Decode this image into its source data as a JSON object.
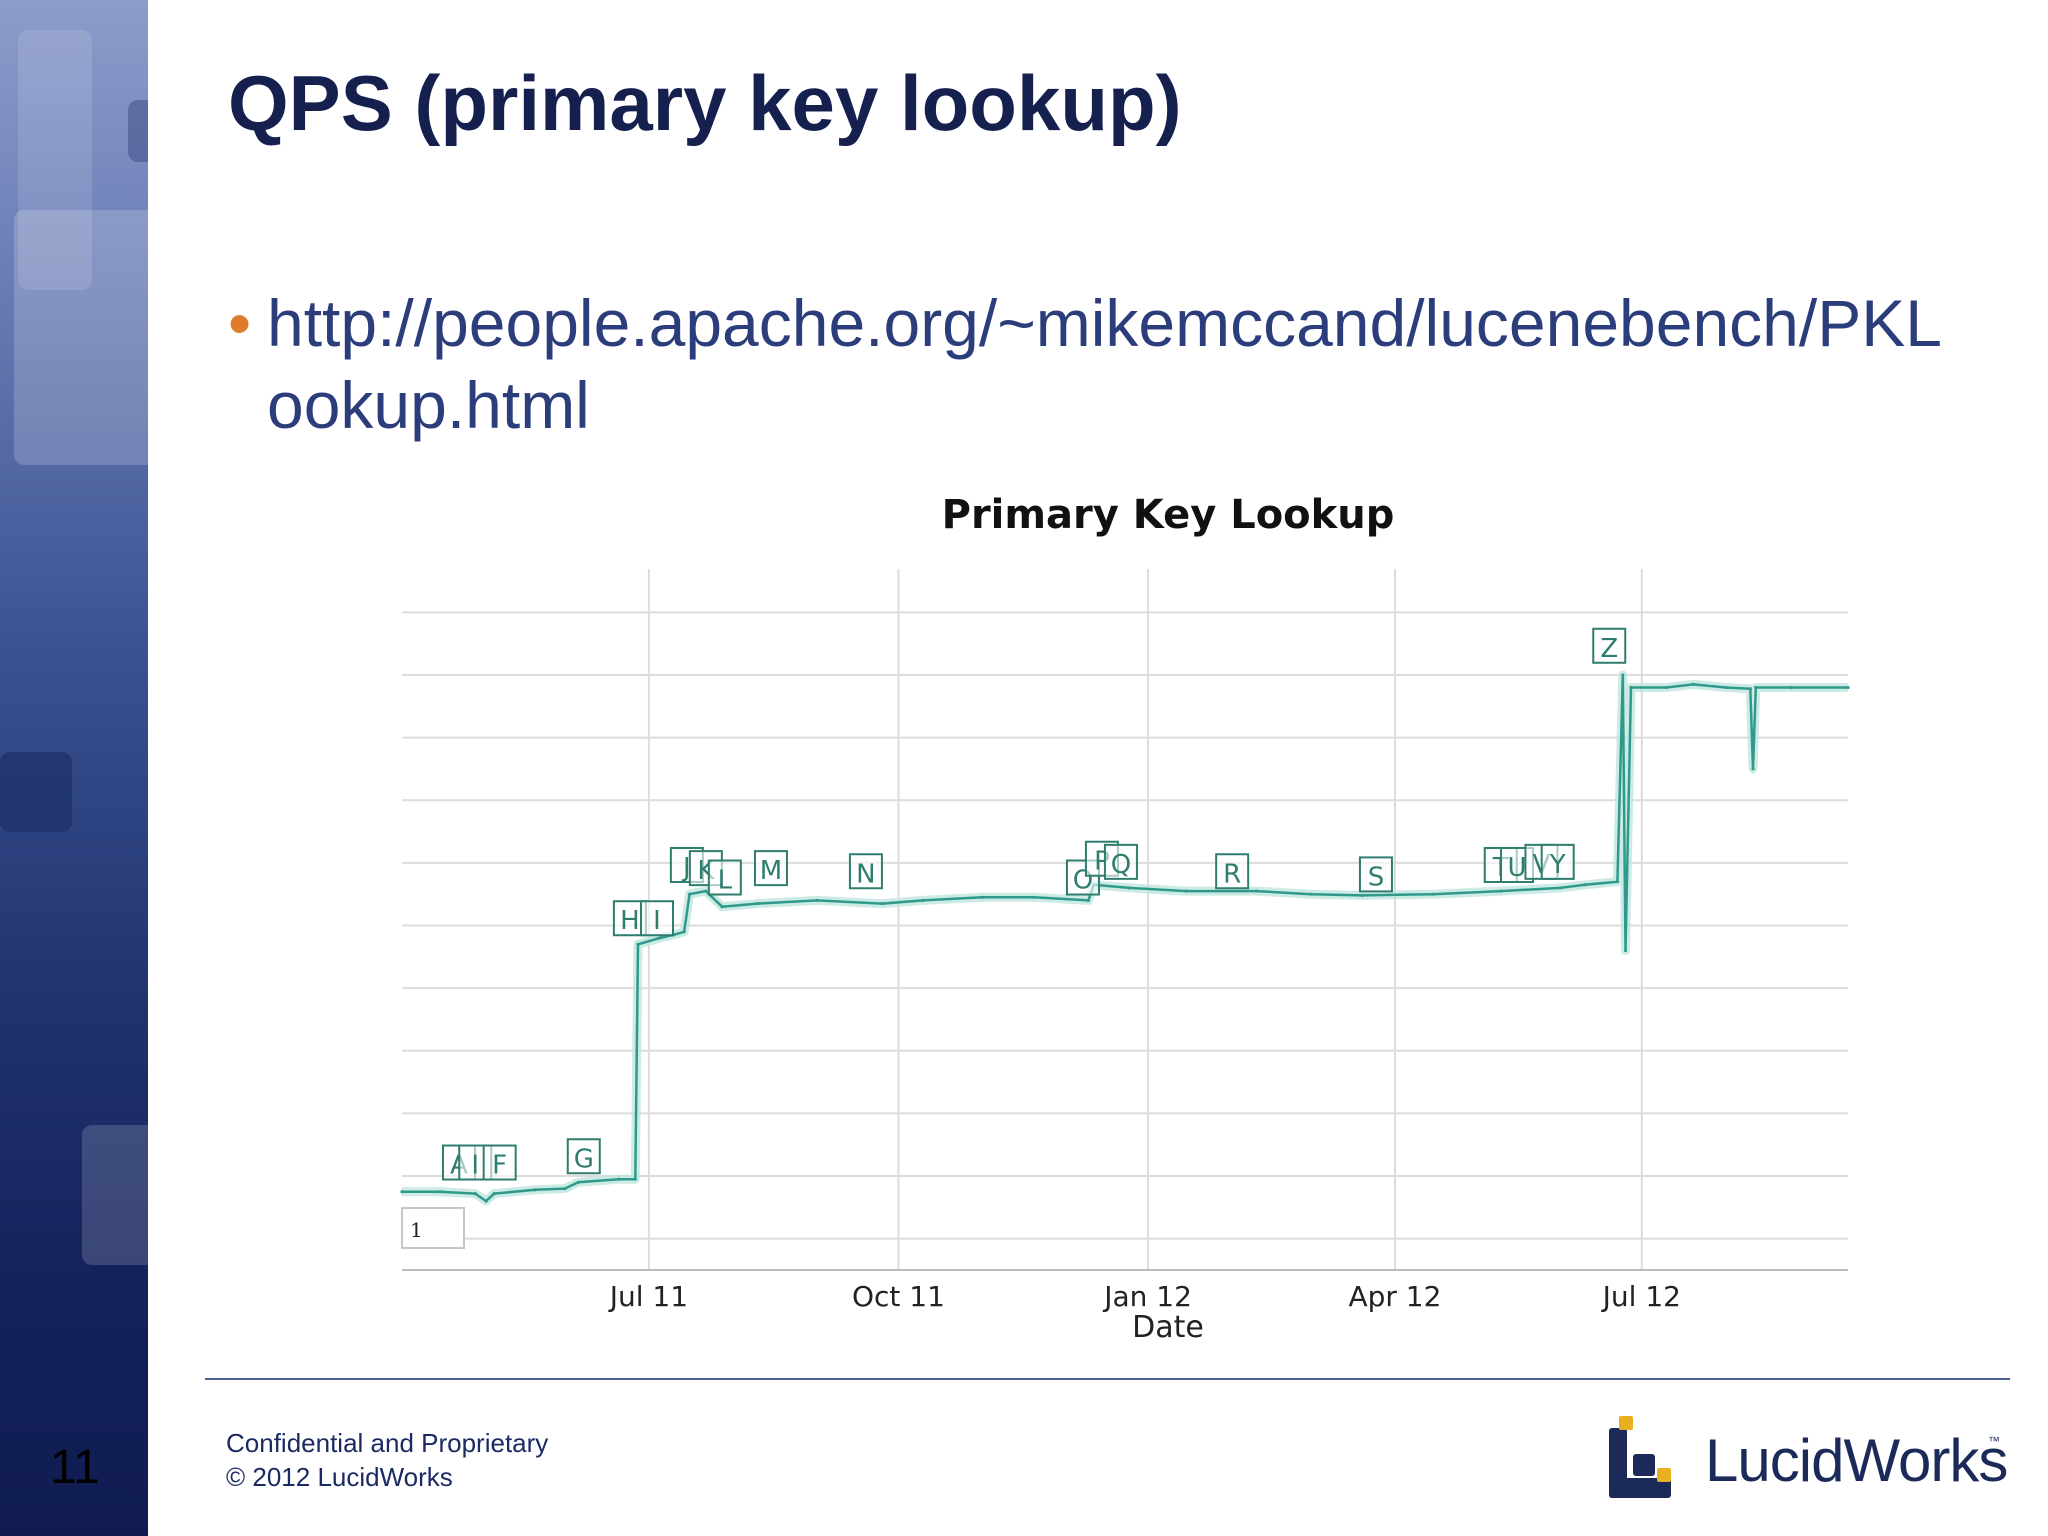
{
  "slide": {
    "number": "11",
    "title": "QPS (primary key lookup)",
    "bullet_url": "http://people.apache.org/~mikemccand/lucenebench/PKLookup.html"
  },
  "footer": {
    "line1": "Confidential and Proprietary",
    "line2": "© 2012 LucidWorks",
    "logo_text": "LucidWorks",
    "logo_tm": "™"
  },
  "colors": {
    "sidebar_dark": "#101c51",
    "title": "#16204f",
    "bullet_text": "#2b3d7a",
    "bullet_dot": "#e07b29",
    "series": "#2f9a8c",
    "band": "#bfe6df",
    "annotation": "#2f7d6e",
    "logo_accent": "#e8b020"
  },
  "icons": {
    "bullet": "orange-dot-icon",
    "logo": "lucidworks-logo-icon"
  },
  "chart_data": {
    "type": "line",
    "title": "Primary Key Lookup",
    "xlabel": "Date",
    "ylabel": "",
    "xlim": [
      "2011-04-01",
      "2012-09-15"
    ],
    "ylim": [
      0,
      11
    ],
    "grid": true,
    "x_ticks": [
      {
        "date": "2011-07-01",
        "label": "Jul 11"
      },
      {
        "date": "2011-10-01",
        "label": "Oct 11"
      },
      {
        "date": "2012-01-01",
        "label": "Jan 12"
      },
      {
        "date": "2012-04-01",
        "label": "Apr 12"
      },
      {
        "date": "2012-07-01",
        "label": "Jul 12"
      }
    ],
    "y_tick_label_visible": "1",
    "series": [
      {
        "name": "",
        "points": [
          [
            "2011-04-01",
            1.25
          ],
          [
            "2011-04-15",
            1.25
          ],
          [
            "2011-04-28",
            1.22
          ],
          [
            "2011-05-02",
            1.1
          ],
          [
            "2011-05-05",
            1.22
          ],
          [
            "2011-05-20",
            1.28
          ],
          [
            "2011-05-31",
            1.3
          ],
          [
            "2011-06-05",
            1.4
          ],
          [
            "2011-06-20",
            1.45
          ],
          [
            "2011-06-26",
            1.45
          ],
          [
            "2011-06-27",
            5.2
          ],
          [
            "2011-07-05",
            5.3
          ],
          [
            "2011-07-10",
            5.35
          ],
          [
            "2011-07-14",
            5.4
          ],
          [
            "2011-07-16",
            6.0
          ],
          [
            "2011-07-22",
            6.05
          ],
          [
            "2011-07-28",
            5.8
          ],
          [
            "2011-08-10",
            5.85
          ],
          [
            "2011-09-01",
            5.9
          ],
          [
            "2011-09-25",
            5.85
          ],
          [
            "2011-10-10",
            5.9
          ],
          [
            "2011-11-01",
            5.95
          ],
          [
            "2011-11-20",
            5.95
          ],
          [
            "2011-12-10",
            5.9
          ],
          [
            "2011-12-12",
            6.15
          ],
          [
            "2011-12-25",
            6.1
          ],
          [
            "2012-01-15",
            6.05
          ],
          [
            "2012-02-10",
            6.05
          ],
          [
            "2012-03-01",
            6.0
          ],
          [
            "2012-03-20",
            5.98
          ],
          [
            "2012-04-15",
            6.0
          ],
          [
            "2012-05-10",
            6.05
          ],
          [
            "2012-06-01",
            6.1
          ],
          [
            "2012-06-10",
            6.15
          ],
          [
            "2012-06-22",
            6.2
          ],
          [
            "2012-06-24",
            9.5
          ],
          [
            "2012-06-25",
            5.1
          ],
          [
            "2012-06-27",
            9.3
          ],
          [
            "2012-07-10",
            9.3
          ],
          [
            "2012-07-20",
            9.35
          ],
          [
            "2012-08-01",
            9.3
          ],
          [
            "2012-08-10",
            9.28
          ],
          [
            "2012-08-11",
            8.0
          ],
          [
            "2012-08-12",
            9.3
          ],
          [
            "2012-08-25",
            9.3
          ],
          [
            "2012-09-15",
            9.3
          ]
        ]
      }
    ],
    "annotations": [
      {
        "label": "A",
        "date": "2011-04-22",
        "y": 1.7
      },
      {
        "label": "I",
        "date": "2011-04-28",
        "y": 1.7
      },
      {
        "label": "F",
        "date": "2011-05-07",
        "y": 1.7
      },
      {
        "label": "G",
        "date": "2011-06-07",
        "y": 1.8
      },
      {
        "label": "H",
        "date": "2011-06-24",
        "y": 5.6
      },
      {
        "label": "I",
        "date": "2011-07-04",
        "y": 5.6
      },
      {
        "label": "J",
        "date": "2011-07-15",
        "y": 6.45
      },
      {
        "label": "K",
        "date": "2011-07-22",
        "y": 6.4
      },
      {
        "label": "L",
        "date": "2011-07-29",
        "y": 6.25
      },
      {
        "label": "M",
        "date": "2011-08-15",
        "y": 6.4
      },
      {
        "label": "N",
        "date": "2011-09-19",
        "y": 6.35
      },
      {
        "label": "O",
        "date": "2011-12-08",
        "y": 6.25
      },
      {
        "label": "P",
        "date": "2011-12-15",
        "y": 6.55
      },
      {
        "label": "Q",
        "date": "2011-12-22",
        "y": 6.5
      },
      {
        "label": "R",
        "date": "2012-02-01",
        "y": 6.35
      },
      {
        "label": "S",
        "date": "2012-03-25",
        "y": 6.3
      },
      {
        "label": "T",
        "date": "2012-05-10",
        "y": 6.45
      },
      {
        "label": "U",
        "date": "2012-05-16",
        "y": 6.45
      },
      {
        "label": "V",
        "date": "2012-05-25",
        "y": 6.5
      },
      {
        "label": "Y",
        "date": "2012-05-31",
        "y": 6.5
      },
      {
        "label": "Z",
        "date": "2012-06-19",
        "y": 9.95
      }
    ]
  }
}
